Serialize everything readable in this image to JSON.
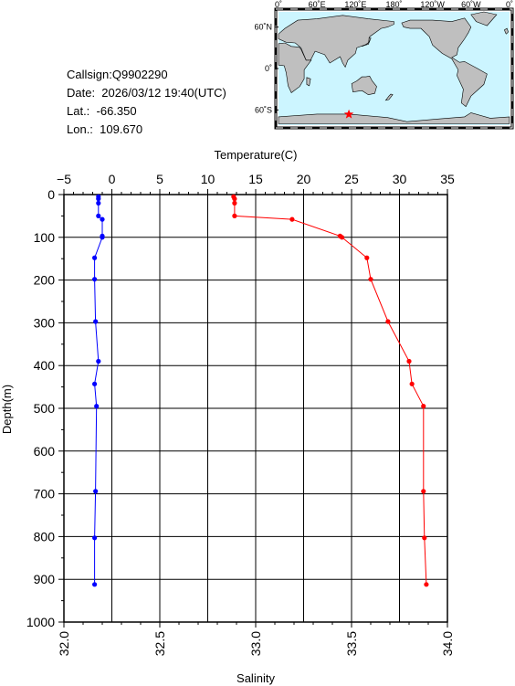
{
  "station": {
    "callsign_line": "Callsign:Q9902290",
    "date_line": "Date:  2026/03/12 19:40(UTC)",
    "lat_line": "Lat.:  -66.350",
    "lon_line": "Lon.:  109.670"
  },
  "map": {
    "lon_labels": [
      "0˚",
      "60˚E",
      "120˚E",
      "180˚",
      "120˚W",
      "60˚W",
      "0˚"
    ],
    "lat_labels": [
      "60˚N",
      "0˚",
      "60˚S"
    ],
    "ocean_color": "#ccf5ff",
    "land_color": "#bfbfbf",
    "marker_color": "#ff0000",
    "marker": {
      "lon": 109.67,
      "lat": -66.35
    }
  },
  "chart_data": {
    "type": "line",
    "top_axis_label": "Temperature(C)",
    "bottom_axis_label": "Salinity",
    "y_axis_label": "Depth(m)",
    "temperature_ticks": [
      "−5",
      "0",
      "5",
      "10",
      "15",
      "20",
      "25",
      "30",
      "35"
    ],
    "salinity_ticks": [
      "32.0",
      "32.5",
      "33.0",
      "33.5",
      "34.0"
    ],
    "depth_ticks": [
      "0",
      "100",
      "200",
      "300",
      "400",
      "500",
      "600",
      "700",
      "800",
      "900",
      "1000"
    ],
    "temperature_range": [
      -5,
      35
    ],
    "salinity_range": [
      32.0,
      34.0
    ],
    "depth_range": [
      0,
      1000
    ],
    "grid": true,
    "series": [
      {
        "variable": "temperature",
        "color": "#ff0000",
        "depth": [
          5,
          10,
          20,
          50,
          58,
          97,
          100,
          148,
          198,
          297,
          390,
          443,
          495,
          694,
          803,
          912
        ],
        "values": [
          12.7,
          12.8,
          12.8,
          12.8,
          18.8,
          23.8,
          24.0,
          26.6,
          27.0,
          28.8,
          31.0,
          31.3,
          32.5,
          32.5,
          32.6,
          32.8
        ]
      },
      {
        "variable": "salinity",
        "color": "#0000ff",
        "depth": [
          5,
          10,
          20,
          50,
          58,
          97,
          100,
          148,
          198,
          297,
          390,
          443,
          495,
          694,
          803,
          912
        ],
        "values": [
          32.18,
          32.18,
          32.18,
          32.18,
          32.2,
          32.2,
          32.2,
          32.16,
          32.16,
          32.165,
          32.18,
          32.16,
          32.17,
          32.165,
          32.16,
          32.16
        ]
      }
    ]
  }
}
